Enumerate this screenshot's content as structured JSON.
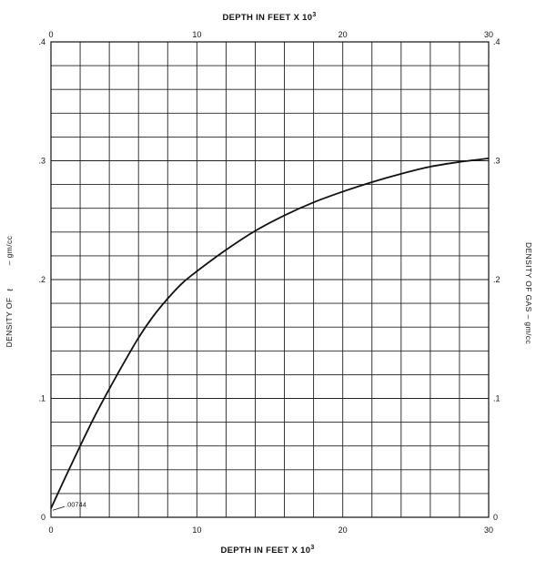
{
  "chart_data": {
    "type": "line",
    "x_title_top": "DEPTH IN FEET X 10",
    "x_title_bottom": "DEPTH IN FEET X 10",
    "x_title_exponent": "3",
    "y_title_left": "DENSITY OF",
    "y_title_left_unit": "– gm/cc",
    "y_title_right": "DENSITY OF GAS – gm/cc",
    "xlim": [
      0,
      30
    ],
    "ylim": [
      0,
      0.4
    ],
    "x_tick_labels": [
      "0",
      "10",
      "20",
      "30"
    ],
    "y_tick_labels": [
      "0",
      ".1",
      ".2",
      ".3",
      ".4"
    ],
    "grid": true,
    "annotation": ".00744",
    "series": [
      {
        "x": [
          0,
          1,
          2,
          3,
          4,
          5,
          6,
          7,
          8,
          9,
          10,
          12,
          14,
          16,
          18,
          20,
          22,
          24,
          26,
          28,
          30
        ],
        "y": [
          0.00744,
          0.034,
          0.06,
          0.085,
          0.108,
          0.13,
          0.151,
          0.169,
          0.184,
          0.197,
          0.207,
          0.225,
          0.241,
          0.254,
          0.265,
          0.274,
          0.282,
          0.289,
          0.295,
          0.299,
          0.302
        ]
      }
    ]
  }
}
